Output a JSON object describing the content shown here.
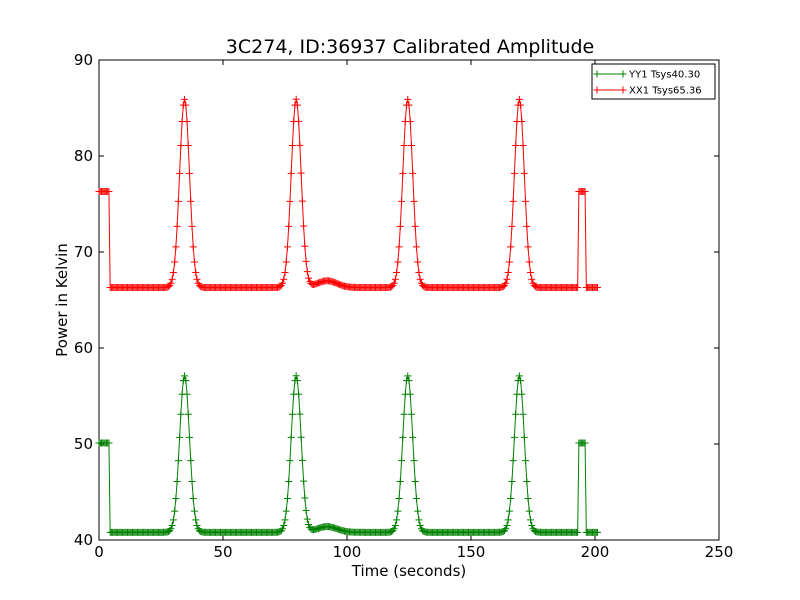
{
  "chart_data": {
    "type": "line",
    "title": "3C274, ID:36937 Calibrated Amplitude",
    "xlabel": "Time (seconds)",
    "ylabel": "Power in Kelvin",
    "xlim": [
      0,
      250
    ],
    "ylim": [
      40,
      90
    ],
    "xticks": [
      0,
      50,
      100,
      150,
      200,
      250
    ],
    "yticks": [
      40,
      50,
      60,
      70,
      80,
      90
    ],
    "grid": false,
    "legend_position": "top-right",
    "marker": "+",
    "series": [
      {
        "name": "YY1 Tsys40.30",
        "color": "#008000",
        "baseline": 40.8,
        "high_level": 50.1,
        "peak_height": 57.1,
        "peak_centers": [
          34.5,
          79.5,
          124.5,
          169.5
        ],
        "peak_sigma": 2.0,
        "bump": {
          "center": 92,
          "height": 0.6,
          "sigma": 4
        },
        "segments": [
          {
            "x_start": 0,
            "x_end": 4,
            "level": "high"
          },
          {
            "x_start": 4.5,
            "x_end": 193,
            "level": "base"
          },
          {
            "x_start": 193.5,
            "x_end": 196,
            "level": "high"
          },
          {
            "x_start": 196.5,
            "x_end": 201,
            "level": "base"
          }
        ]
      },
      {
        "name": "XX1 Tsys65.36",
        "color": "#ff0000",
        "baseline": 66.3,
        "high_level": 76.3,
        "peak_height": 85.9,
        "peak_centers": [
          34.5,
          79.5,
          124.5,
          169.5
        ],
        "peak_sigma": 2.0,
        "bump": {
          "center": 92,
          "height": 0.7,
          "sigma": 4
        },
        "segments": [
          {
            "x_start": 0,
            "x_end": 4,
            "level": "high"
          },
          {
            "x_start": 4.5,
            "x_end": 193,
            "level": "base"
          },
          {
            "x_start": 193.5,
            "x_end": 196,
            "level": "high"
          },
          {
            "x_start": 196.5,
            "x_end": 201,
            "level": "base"
          }
        ]
      }
    ]
  }
}
